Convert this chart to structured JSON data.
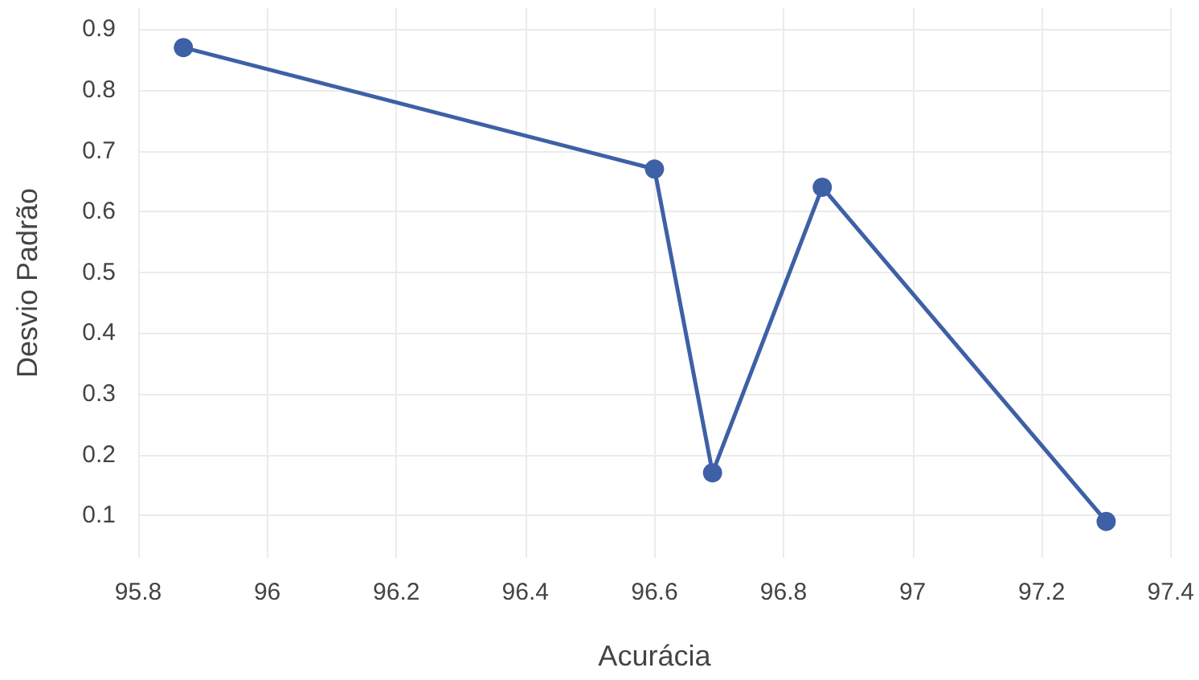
{
  "chart_data": {
    "type": "line",
    "xlabel": "Acurácia",
    "ylabel": "Desvio Padrão",
    "x": [
      95.87,
      96.6,
      96.69,
      96.86,
      97.3
    ],
    "series": [
      {
        "color": "#3e60a6",
        "values": [
          0.87,
          0.67,
          0.17,
          0.64,
          0.09
        ]
      }
    ],
    "xlim": [
      95.8,
      97.4
    ],
    "xticks": [
      95.8,
      96,
      96.2,
      96.4,
      96.6,
      96.8,
      97,
      97.2,
      97.4
    ],
    "ylim": [
      0.03,
      0.935
    ],
    "yticks": [
      0.1,
      0.2,
      0.3,
      0.4,
      0.5,
      0.6,
      0.7,
      0.8,
      0.9
    ],
    "grid": true,
    "marker": "circle",
    "line_style": "solid"
  }
}
